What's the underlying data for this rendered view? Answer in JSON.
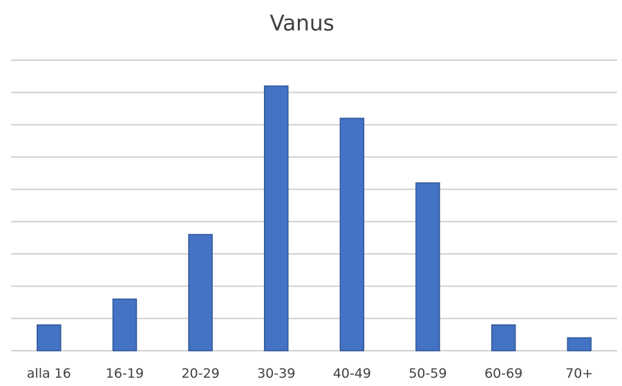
{
  "chart_data": {
    "type": "bar",
    "title": "Vanus",
    "xlabel": "",
    "ylabel": "",
    "categories": [
      "alla 16",
      "16-19",
      "20-29",
      "30-39",
      "40-49",
      "50-59",
      "60-69",
      "70+"
    ],
    "values": [
      0.8,
      1.6,
      3.6,
      8.2,
      7.2,
      5.2,
      0.8,
      0.4
    ],
    "ylim": [
      0,
      9
    ],
    "grid": true,
    "gridline_count": 9,
    "y_tick_labels_visible": false,
    "legend": "none",
    "colors": {
      "bar_fill": "#4472c4",
      "bar_stroke": "#2f5597",
      "grid": "#d0d0d0",
      "text": "#404040"
    }
  }
}
